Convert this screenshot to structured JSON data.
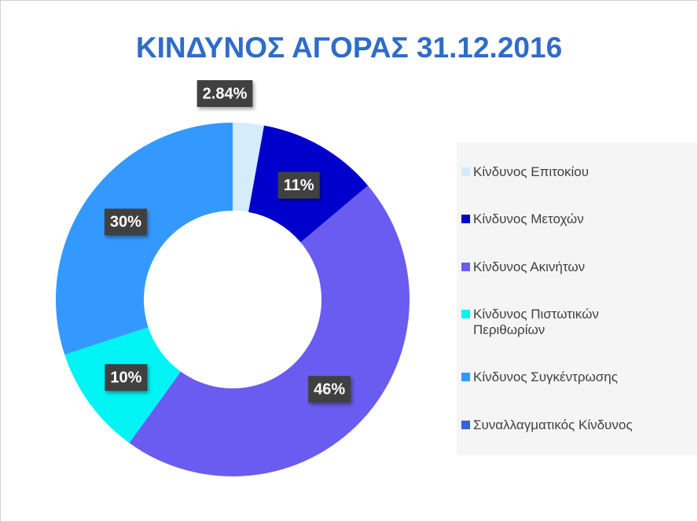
{
  "chart_data": {
    "type": "donut",
    "title": "ΚΙΝΔΥΝΟΣ ΑΓΟΡΑΣ 31.12.2016",
    "categories": [
      "Κίνδυνος Επιτοκίου",
      "Κίνδυνος Μετοχών",
      "Κίνδυνος Ακινήτων",
      "Κίνδυνος Πιστωτικών Περιθωρίων",
      "Κίνδυνος Συγκέντρωσης",
      "Συναλλαγματικός Κίνδυνος"
    ],
    "values": [
      2.84,
      11,
      46,
      10,
      30,
      0
    ],
    "value_labels": [
      "2.84%",
      "11%",
      "46%",
      "10%",
      "30%",
      null
    ],
    "colors": [
      "#d4ecfb",
      "#0000cc",
      "#6a5cf0",
      "#00f4f4",
      "#3399ff",
      "#3366cc"
    ],
    "legend": "right"
  }
}
